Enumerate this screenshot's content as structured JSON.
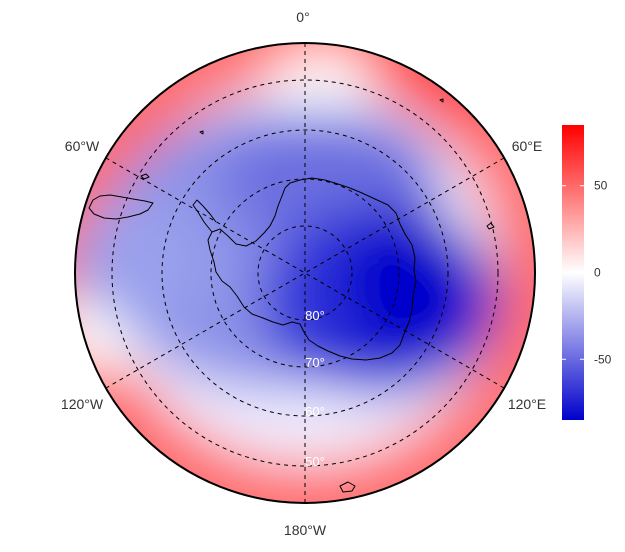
{
  "map": {
    "projection": "south-polar-stereographic",
    "colors": {
      "negative_max": "#0000cc",
      "mid": "#ffffff",
      "positive_max": "#ff0000"
    },
    "longitude_labels": [
      {
        "text": "0°",
        "lon": 0
      },
      {
        "text": "60°E",
        "lon": 60
      },
      {
        "text": "120°E",
        "lon": 120
      },
      {
        "text": "180°W",
        "lon": 180
      },
      {
        "text": "120°W",
        "lon": -120
      },
      {
        "text": "60°W",
        "lon": -60
      }
    ],
    "latitude_labels": [
      {
        "text": "80°",
        "lat": -80
      },
      {
        "text": "70°",
        "lat": -70
      },
      {
        "text": "60°",
        "lat": -60
      },
      {
        "text": "50°",
        "lat": -50
      }
    ],
    "colorbar": {
      "min": -85,
      "max": 85,
      "ticks": [
        {
          "value": 50,
          "label": "50"
        },
        {
          "value": 0,
          "label": "0"
        },
        {
          "value": -50,
          "label": "-50"
        }
      ]
    }
  }
}
